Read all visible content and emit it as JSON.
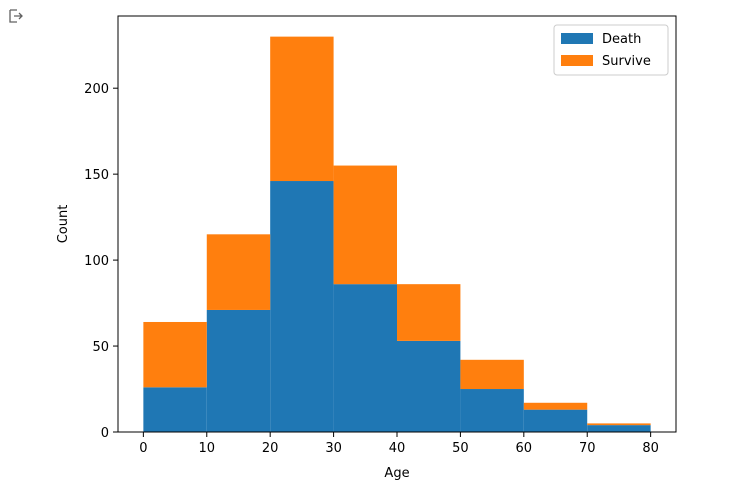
{
  "cell": {
    "output_icon": "output-redirect-icon"
  },
  "chart_data": {
    "type": "bar",
    "stacked": true,
    "bin_edges": [
      0,
      10,
      20,
      30,
      40,
      50,
      60,
      70,
      80
    ],
    "series": [
      {
        "name": "Death",
        "color": "#1f77b4",
        "values": [
          26,
          71,
          146,
          86,
          53,
          25,
          13,
          4
        ]
      },
      {
        "name": "Survive",
        "color": "#ff7f0e",
        "values": [
          38,
          44,
          84,
          69,
          33,
          17,
          4,
          1
        ]
      }
    ],
    "xlabel": "Age",
    "ylabel": "Count",
    "xlim": [
      -4,
      84
    ],
    "ylim": [
      0,
      242
    ],
    "x_ticks": [
      0,
      10,
      20,
      30,
      40,
      50,
      60,
      70,
      80
    ],
    "y_ticks": [
      0,
      50,
      100,
      150,
      200
    ],
    "legend": {
      "position": "top-right"
    },
    "grid": false
  }
}
